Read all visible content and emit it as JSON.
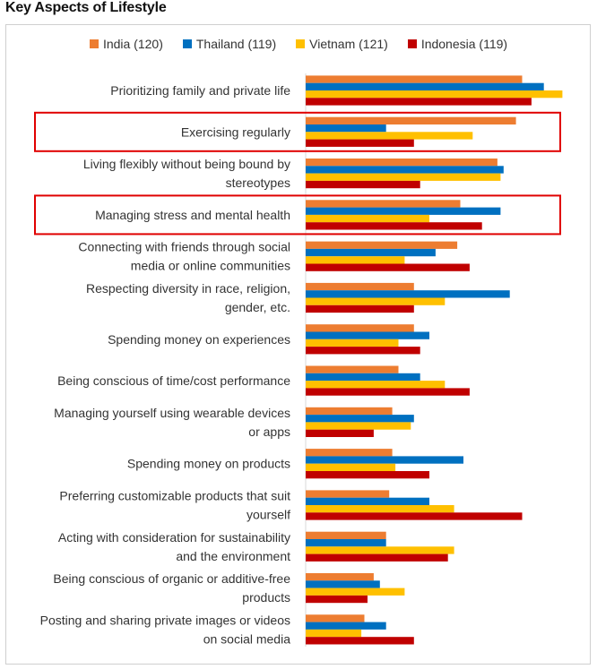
{
  "page": {
    "title": "Key Aspects of Lifestyle"
  },
  "chart_data": {
    "type": "bar",
    "orientation": "horizontal",
    "title": "Key Aspects of Lifestyle",
    "xlim": [
      0,
      100
    ],
    "grid": false,
    "legend_position": "top",
    "series": [
      {
        "name": "India (120)",
        "color": "#ED7D31",
        "values": [
          70,
          68,
          62,
          50,
          49,
          35,
          35,
          30,
          28,
          28,
          27,
          26,
          22,
          19
        ]
      },
      {
        "name": "Thailand (119)",
        "color": "#0070C0",
        "values": [
          77,
          26,
          64,
          63,
          42,
          66,
          40,
          37,
          35,
          51,
          40,
          26,
          24,
          26
        ]
      },
      {
        "name": "Vietnam (121)",
        "color": "#FFC000",
        "values": [
          83,
          54,
          63,
          40,
          32,
          45,
          30,
          45,
          34,
          29,
          48,
          48,
          32,
          18
        ]
      },
      {
        "name": "Indonesia (119)",
        "color": "#C00000",
        "values": [
          73,
          35,
          37,
          57,
          53,
          35,
          37,
          53,
          22,
          40,
          70,
          46,
          20,
          35
        ]
      }
    ],
    "categories": [
      [
        "Prioritizing family and private life"
      ],
      [
        "Exercising regularly"
      ],
      [
        "Living flexibly without being bound by",
        "stereotypes"
      ],
      [
        "Managing stress and mental health"
      ],
      [
        "Connecting with friends through social",
        "media or online communities"
      ],
      [
        "Respecting diversity in race, religion,",
        "gender, etc."
      ],
      [
        "Spending money on experiences"
      ],
      [
        "Being conscious of time/cost performance"
      ],
      [
        "Managing yourself using wearable devices",
        "or apps"
      ],
      [
        "Spending money on products"
      ],
      [
        "Preferring customizable products that suit",
        "yourself"
      ],
      [
        "Acting with consideration for sustainability",
        "and the environment"
      ],
      [
        "Being conscious of organic or additive-free",
        "products"
      ],
      [
        "Posting and sharing private images or videos",
        "on social media"
      ]
    ],
    "highlighted_categories": [
      1,
      3
    ],
    "highlight_color": "#E00000"
  }
}
